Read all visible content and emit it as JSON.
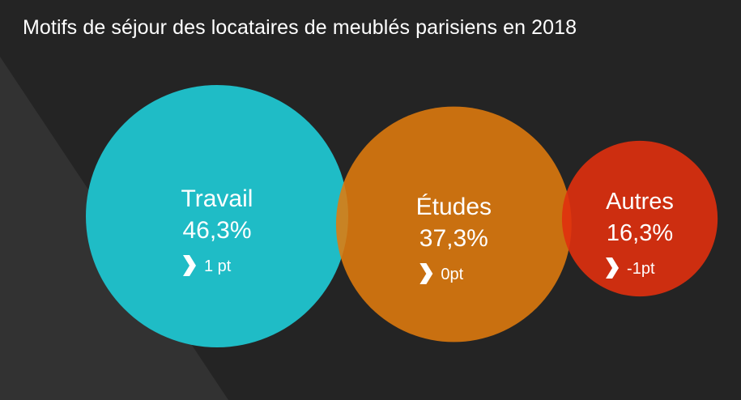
{
  "header": {
    "title": "Motifs de séjour des locataires de meublés parisiens en 2018"
  },
  "colors": {
    "background": "#242424",
    "background_band": "#323232",
    "text": "#ffffff"
  },
  "chart_data": {
    "type": "bubble",
    "title": "Motifs de séjour des locataires de meublés parisiens en 2018",
    "unit": "%",
    "categories": [
      "Travail",
      "Études",
      "Autres"
    ],
    "values": [
      46.3,
      37.3,
      16.3
    ],
    "value_labels": [
      "46,3%",
      "37,3%",
      "16,3%"
    ],
    "changes": [
      1,
      0,
      -1
    ],
    "change_labels": [
      "1 pt",
      "0pt",
      "-1pt"
    ],
    "colors": [
      "#1fbcc6",
      "#e07b0e",
      "#e0300e"
    ],
    "opacities": [
      1,
      0.88,
      0.9
    ],
    "change_icon": "chevron-right-icon"
  }
}
